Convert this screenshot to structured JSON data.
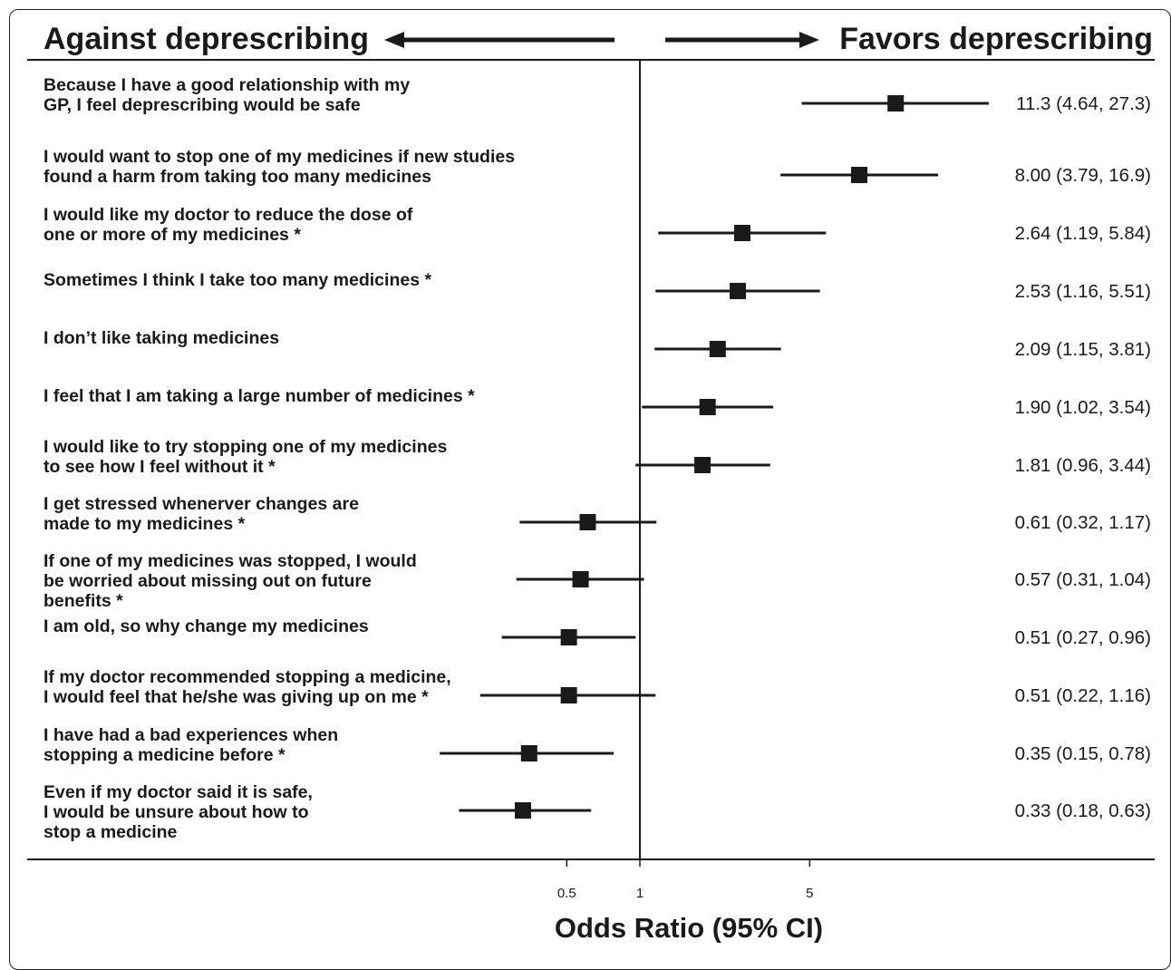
{
  "chart_data": {
    "type": "forest",
    "direction_left": "Against deprescribing",
    "direction_right": "Favors deprescribing",
    "xlabel": "Odds Ratio (95% CI)",
    "x_scale": "log",
    "xticks": [
      {
        "value": 0.5,
        "label": "0.5"
      },
      {
        "value": 1,
        "label": "1"
      },
      {
        "value": 5,
        "label": "5"
      }
    ],
    "reference_value": 1,
    "xlim": [
      0.2,
      30
    ],
    "rows": [
      {
        "label_lines": [
          "Because I have a good relationship with my",
          "GP, I feel deprescribing would be safe"
        ],
        "or": 11.3,
        "lo": 4.64,
        "hi": 27.3,
        "value_text": "11.3  (4.64, 27.3)"
      },
      {
        "label_lines": [
          "I would want to stop one of my medicines if new studies",
          "found a harm from taking too many medicines"
        ],
        "or": 8.0,
        "lo": 3.79,
        "hi": 16.9,
        "value_text": "8.00  (3.79, 16.9)"
      },
      {
        "label_lines": [
          "I would like my doctor to reduce the dose of",
          "one or more of my medicines *"
        ],
        "or": 2.64,
        "lo": 1.19,
        "hi": 5.84,
        "value_text": "2.64  (1.19, 5.84)"
      },
      {
        "label_lines": [
          "Sometimes I think I take too many medicines *"
        ],
        "or": 2.53,
        "lo": 1.16,
        "hi": 5.51,
        "value_text": "2.53  (1.16, 5.51)"
      },
      {
        "label_lines": [
          "I don’t like taking medicines"
        ],
        "or": 2.09,
        "lo": 1.15,
        "hi": 3.81,
        "value_text": "2.09  (1.15, 3.81)"
      },
      {
        "label_lines": [
          "I feel that I am taking a large number of medicines *"
        ],
        "or": 1.9,
        "lo": 1.02,
        "hi": 3.54,
        "value_text": "1.90  (1.02, 3.54)"
      },
      {
        "label_lines": [
          "I would like to try stopping one of my medicines",
          "to see how I feel without it *"
        ],
        "or": 1.81,
        "lo": 0.96,
        "hi": 3.44,
        "value_text": "1.81  (0.96, 3.44)"
      },
      {
        "label_lines": [
          "I get stressed whenerver changes are",
          "made to my medicines *"
        ],
        "or": 0.61,
        "lo": 0.32,
        "hi": 1.17,
        "value_text": "0.61  (0.32, 1.17)"
      },
      {
        "label_lines": [
          "If one of my medicines was stopped, I would",
          "be worried about missing out on future",
          "benefits *"
        ],
        "or": 0.57,
        "lo": 0.31,
        "hi": 1.04,
        "value_text": "0.57  (0.31, 1.04)"
      },
      {
        "label_lines": [
          "I am old, so why change my medicines"
        ],
        "or": 0.51,
        "lo": 0.27,
        "hi": 0.96,
        "value_text": "0.51  (0.27, 0.96)"
      },
      {
        "label_lines": [
          "If my doctor recommended stopping a medicine,",
          "I would feel that he/she was giving up on me *"
        ],
        "or": 0.51,
        "lo": 0.22,
        "hi": 1.16,
        "value_text": "0.51  (0.22, 1.16)"
      },
      {
        "label_lines": [
          "I have had a bad experiences when",
          "stopping a medicine before *"
        ],
        "or": 0.35,
        "lo": 0.15,
        "hi": 0.78,
        "value_text": "0.35  (0.15, 0.78)"
      },
      {
        "label_lines": [
          "Even if my doctor said it is safe,",
          "I would be unsure about how to",
          "stop a medicine"
        ],
        "or": 0.33,
        "lo": 0.18,
        "hi": 0.63,
        "value_text": "0.33  (0.18, 0.63)"
      }
    ],
    "colors": {
      "ink": "#1a1a1a"
    }
  }
}
